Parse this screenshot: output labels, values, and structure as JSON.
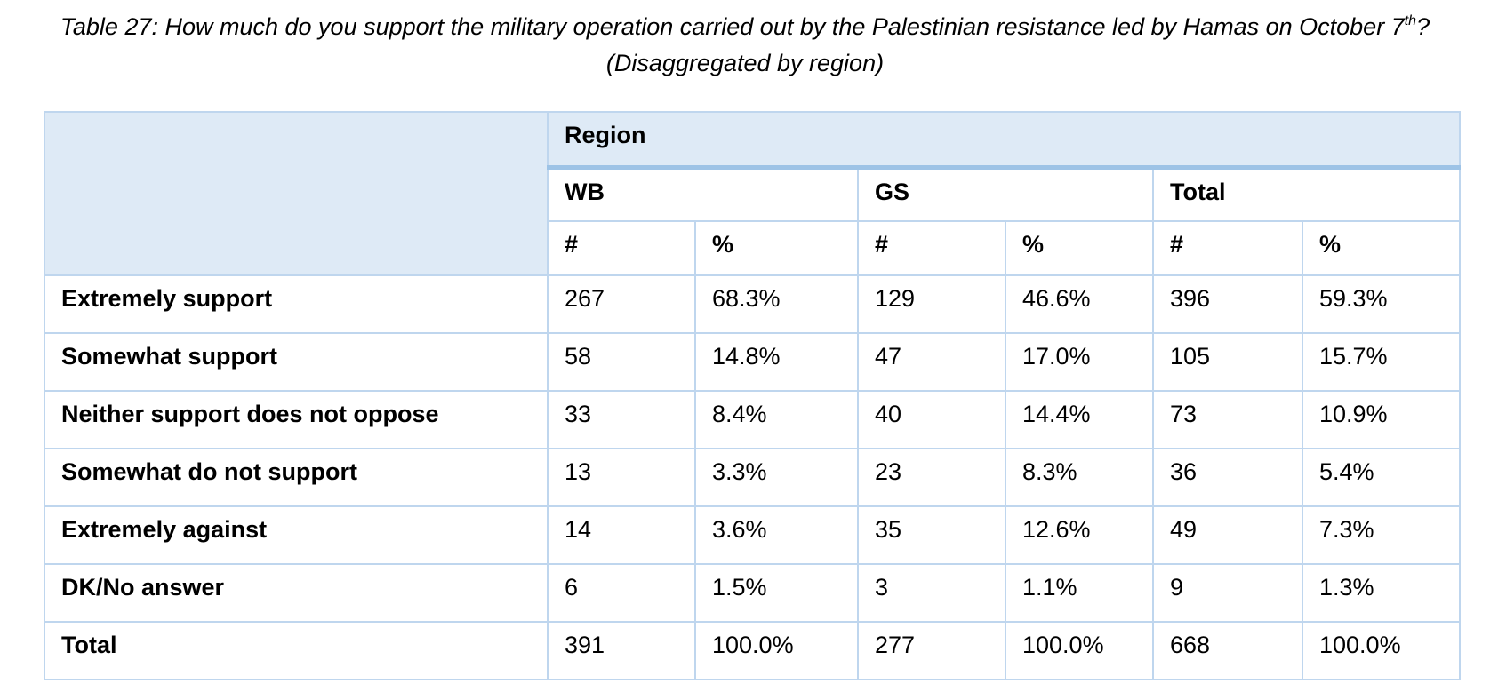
{
  "caption": {
    "prefix": "Table 27: How much do you support the military operation carried out by the Palestinian resistance led by Hamas on October 7",
    "sup": "th",
    "suffix": "? (Disaggregated by region)"
  },
  "table": {
    "region_label": "Region",
    "groups": [
      "WB",
      "GS",
      "Total"
    ],
    "unit_labels": [
      "#",
      "%",
      "#",
      "%",
      "#",
      "%"
    ],
    "rows": [
      {
        "label": "Extremely support",
        "cells": [
          "267",
          "68.3%",
          "129",
          "46.6%",
          "396",
          "59.3%"
        ]
      },
      {
        "label": "Somewhat support",
        "cells": [
          "58",
          "14.8%",
          "47",
          "17.0%",
          "105",
          "15.7%"
        ]
      },
      {
        "label": "Neither support does not oppose",
        "cells": [
          "33",
          "8.4%",
          "40",
          "14.4%",
          "73",
          "10.9%"
        ]
      },
      {
        "label": "Somewhat do not support",
        "cells": [
          "13",
          "3.3%",
          "23",
          "8.3%",
          "36",
          "5.4%"
        ]
      },
      {
        "label": "Extremely against",
        "cells": [
          "14",
          "3.6%",
          "35",
          "12.6%",
          "49",
          "7.3%"
        ]
      },
      {
        "label": "DK/No answer",
        "cells": [
          "6",
          "1.5%",
          "3",
          "1.1%",
          "9",
          "1.3%"
        ]
      },
      {
        "label": "Total",
        "cells": [
          "391",
          "100.0%",
          "277",
          "100.0%",
          "668",
          "100.0%"
        ]
      }
    ]
  }
}
